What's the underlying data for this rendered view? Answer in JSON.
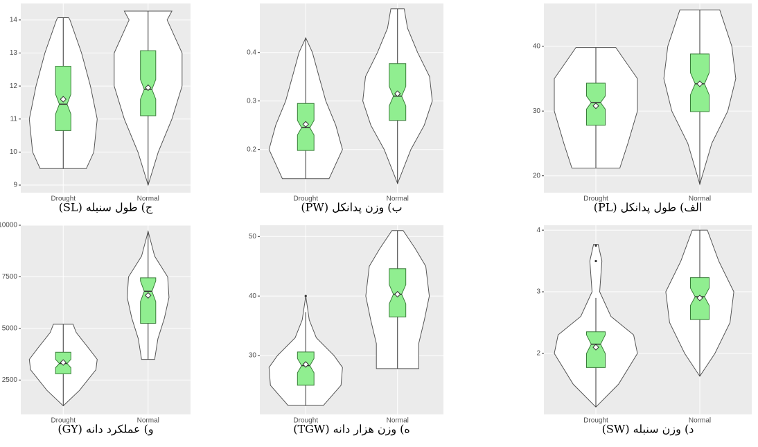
{
  "chart_data": [
    {
      "type": "violin",
      "title": "ج) طول سنبله (SL)",
      "categories": [
        "Drought",
        "Normal"
      ],
      "ylim": [
        8.77,
        14.5
      ],
      "yticks": [
        9,
        10,
        11,
        12,
        13,
        14
      ],
      "grid": true,
      "fill_color": "#90ee90",
      "box_color": "#3a7d3a",
      "groups": [
        {
          "violin_y": [
            9.5,
            10,
            11,
            12,
            13,
            14,
            14.07
          ],
          "violin_density": [
            34,
            45,
            50,
            40,
            27,
            10,
            8
          ],
          "whisker": [
            9.5,
            14.07
          ],
          "box": [
            10.65,
            11.45,
            12.6
          ],
          "notch": [
            11.15,
            11.75
          ],
          "mean": 11.6,
          "outliers": []
        },
        {
          "violin_y": [
            9.0,
            10,
            11,
            12,
            13,
            14,
            14.27
          ],
          "violin_density": [
            0,
            15,
            35,
            50,
            50,
            28,
            35
          ],
          "whisker": [
            9.0,
            14.27
          ],
          "box": [
            11.1,
            11.9,
            13.07
          ],
          "notch": [
            11.6,
            12.2
          ],
          "mean": 11.95,
          "outliers": []
        }
      ]
    },
    {
      "type": "violin",
      "title": "ب) وزن پدانکل (PW)",
      "categories": [
        "Drought",
        "Normal"
      ],
      "ylim": [
        0.111,
        0.501
      ],
      "yticks": [
        0.2,
        0.3,
        0.4
      ],
      "grid": true,
      "fill_color": "#90ee90",
      "box_color": "#3a7d3a",
      "groups": [
        {
          "violin_y": [
            0.14,
            0.2,
            0.25,
            0.3,
            0.35,
            0.4,
            0.43
          ],
          "violin_density": [
            35,
            55,
            45,
            30,
            20,
            10,
            0
          ],
          "whisker": [
            0.14,
            0.43
          ],
          "box": [
            0.198,
            0.245,
            0.295
          ],
          "notch": [
            0.23,
            0.26
          ],
          "mean": 0.252,
          "outliers": []
        },
        {
          "violin_y": [
            0.13,
            0.2,
            0.25,
            0.3,
            0.35,
            0.4,
            0.45,
            0.49
          ],
          "violin_density": [
            0,
            20,
            40,
            52,
            48,
            30,
            15,
            10
          ],
          "whisker": [
            0.13,
            0.49
          ],
          "box": [
            0.26,
            0.31,
            0.377
          ],
          "notch": [
            0.29,
            0.33
          ],
          "mean": 0.315,
          "outliers": []
        }
      ]
    },
    {
      "type": "violin",
      "title": "الف) طول پدانکل (PL)",
      "categories": [
        "Drought",
        "Normal"
      ],
      "ylim": [
        17.4,
        46.6
      ],
      "yticks": [
        20,
        30,
        40
      ],
      "grid": true,
      "fill_color": "#90ee90",
      "box_color": "#3a7d3a",
      "groups": [
        {
          "violin_y": [
            21.2,
            25,
            30,
            35,
            38,
            39.8
          ],
          "violin_density": [
            30,
            40,
            52,
            52,
            35,
            25
          ],
          "whisker": [
            21.2,
            39.8
          ],
          "box": [
            27.8,
            31.3,
            34.3
          ],
          "notch": [
            30.3,
            32.3
          ],
          "mean": 30.8,
          "outliers": []
        },
        {
          "violin_y": [
            18.7,
            25,
            30,
            35,
            40,
            45.6
          ],
          "violin_density": [
            0,
            15,
            35,
            45,
            40,
            25
          ],
          "whisker": [
            18.7,
            45.6
          ],
          "box": [
            29.9,
            34.2,
            38.8
          ],
          "notch": [
            32.5,
            35.9
          ],
          "mean": 34.2,
          "outliers": []
        }
      ]
    },
    {
      "type": "violin",
      "title": "و) عملکرد دانه (GY)",
      "categories": [
        "Drought",
        "Normal"
      ],
      "ylim": [
        833,
        10000
      ],
      "yticks": [
        2500,
        5000,
        7500,
        10000
      ],
      "grid": true,
      "fill_color": "#90ee90",
      "box_color": "#3a7d3a",
      "groups": [
        {
          "violin_y": [
            1250,
            2000,
            3000,
            3500,
            4000,
            4800,
            5200
          ],
          "violin_density": [
            0,
            25,
            50,
            52,
            40,
            20,
            15
          ],
          "whisker": [
            1250,
            5200
          ],
          "box": [
            2800,
            3300,
            3850
          ],
          "notch": [
            3100,
            3500
          ],
          "mean": 3350,
          "outliers": []
        },
        {
          "violin_y": [
            3500,
            4500,
            5500,
            6500,
            7500,
            8500,
            9700
          ],
          "violin_density": [
            10,
            15,
            25,
            32,
            30,
            10,
            0
          ],
          "whisker": [
            3500,
            9700
          ],
          "box": [
            5250,
            6800,
            7450
          ],
          "notch": [
            6300,
            7300
          ],
          "mean": 6600,
          "outliers": []
        }
      ]
    },
    {
      "type": "violin",
      "title": "ه) وزن هزار دانه (TGW)",
      "categories": [
        "Drought",
        "Normal"
      ],
      "ylim": [
        20.1,
        51.9
      ],
      "yticks": [
        30,
        40,
        50
      ],
      "grid": true,
      "fill_color": "#90ee90",
      "box_color": "#3a7d3a",
      "groups": [
        {
          "violin_y": [
            21.6,
            25,
            28,
            30,
            33,
            36,
            40
          ],
          "violin_density": [
            25,
            50,
            52,
            40,
            15,
            5,
            0
          ],
          "whisker": [
            21.6,
            37.3
          ],
          "box": [
            25.0,
            28.3,
            30.6
          ],
          "notch": [
            27.1,
            29.5
          ],
          "mean": 28.5,
          "outliers": [
            40.0
          ]
        },
        {
          "violin_y": [
            27.8,
            32,
            36,
            40,
            45,
            48,
            51
          ],
          "violin_density": [
            30,
            30,
            38,
            45,
            40,
            25,
            8
          ],
          "whisker": [
            27.8,
            51.0
          ],
          "box": [
            36.5,
            40.3,
            44.6
          ],
          "notch": [
            38.7,
            41.9
          ],
          "mean": 40.3,
          "outliers": []
        }
      ]
    },
    {
      "type": "violin",
      "title": "د) وزن سنبله (SW)",
      "categories": [
        "Drought",
        "Normal"
      ],
      "ylim": [
        1.01,
        4.08
      ],
      "yticks": [
        2,
        3,
        4
      ],
      "grid": true,
      "fill_color": "#90ee90",
      "box_color": "#3a7d3a",
      "groups": [
        {
          "violin_y": [
            1.13,
            1.5,
            2,
            2.3,
            2.6,
            3.0,
            3.5,
            3.77
          ],
          "violin_density": [
            0,
            30,
            55,
            50,
            20,
            5,
            8,
            3
          ],
          "whisker": [
            1.13,
            2.9
          ],
          "box": [
            1.77,
            2.15,
            2.35
          ],
          "notch": [
            2.0,
            2.3
          ],
          "mean": 2.1,
          "outliers": [
            3.5,
            3.75
          ]
        },
        {
          "violin_y": [
            1.63,
            2,
            2.5,
            3.0,
            3.5,
            4.0
          ],
          "violin_density": [
            0,
            20,
            40,
            45,
            25,
            10
          ],
          "whisker": [
            1.63,
            4.0
          ],
          "box": [
            2.55,
            2.92,
            3.23
          ],
          "notch": [
            2.78,
            3.06
          ],
          "mean": 2.9,
          "outliers": []
        }
      ]
    }
  ]
}
